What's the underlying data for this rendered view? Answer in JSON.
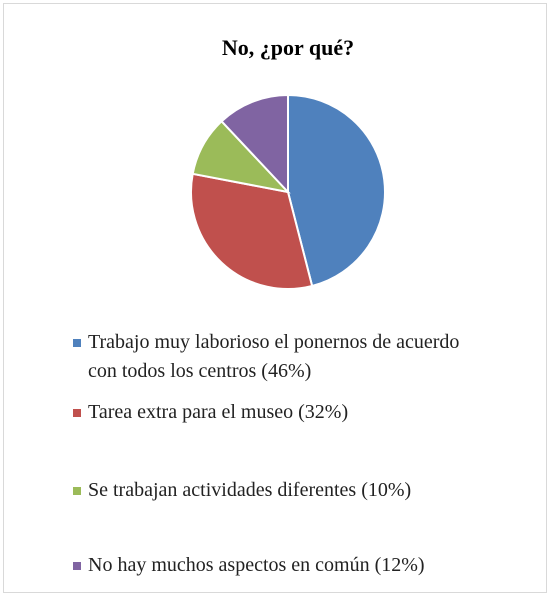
{
  "chart_data": {
    "type": "pie",
    "title": "No, ¿por qué?",
    "categories": [
      "Trabajo muy laborioso el ponernos de acuerdo con todos los centros (46%)",
      "Tarea extra para el museo (32%)",
      "Se trabajan actividades diferentes (10%)",
      "No hay muchos aspectos en común (12%)"
    ],
    "values": [
      46,
      32,
      10,
      12
    ],
    "colors": [
      "#4f81bd",
      "#c0504d",
      "#9bbb59",
      "#8064a2"
    ],
    "legend": "bottom"
  }
}
